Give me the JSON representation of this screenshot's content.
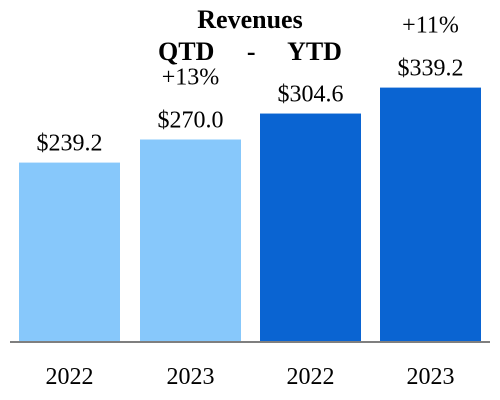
{
  "chart_data": {
    "type": "bar",
    "title": "Revenues",
    "subtitle": "QTD     -     YTD",
    "categories": [
      "2022",
      "2023",
      "2022",
      "2023"
    ],
    "groups": [
      "QTD",
      "QTD",
      "YTD",
      "YTD"
    ],
    "values": [
      239.2,
      270.0,
      304.6,
      339.2
    ],
    "value_labels": [
      "$239.2",
      "$270.0",
      "$304.6",
      "$339.2"
    ],
    "growth_labels": [
      "",
      "+13%",
      "",
      "+11%"
    ],
    "colors": [
      "#87c8fb",
      "#87c8fb",
      "#0a64d2",
      "#0a64d2"
    ],
    "ylim": [
      0,
      400
    ],
    "grid": false,
    "legend": "none"
  }
}
